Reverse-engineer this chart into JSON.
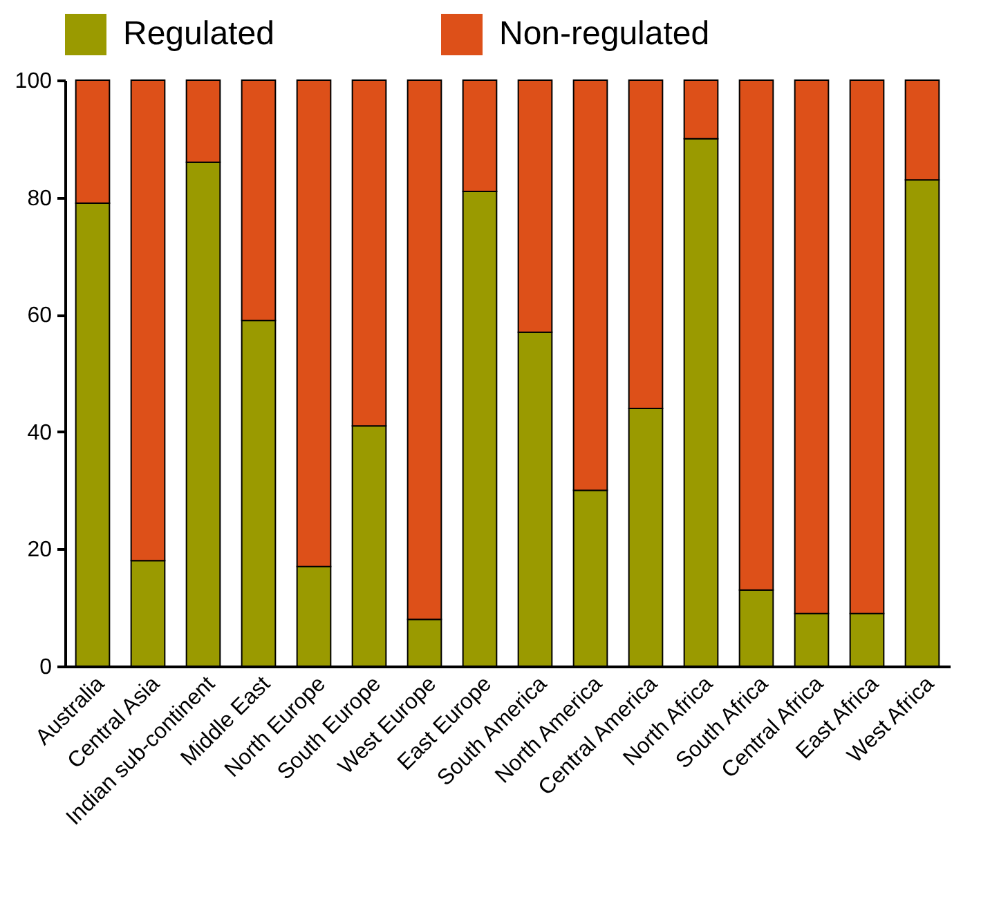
{
  "chart_data": {
    "type": "bar",
    "stacked": true,
    "categories": [
      "Australia",
      "Central Asia",
      "Indian sub-continent",
      "Middle East",
      "North Europe",
      "South Europe",
      "West Europe",
      "East Europe",
      "South America",
      "North America",
      "Central America",
      "North Africa",
      "South Africa",
      "Central Africa",
      "East Africa",
      "West Africa"
    ],
    "series": [
      {
        "name": "Regulated",
        "color": "#9a9a00",
        "values": [
          79,
          18,
          86,
          59,
          17,
          41,
          8,
          81,
          57,
          30,
          44,
          90,
          13,
          9,
          9,
          83
        ]
      },
      {
        "name": "Non-regulated",
        "color": "#dd5019",
        "values": [
          21,
          82,
          14,
          41,
          83,
          59,
          92,
          19,
          43,
          70,
          56,
          10,
          87,
          91,
          91,
          17
        ]
      }
    ],
    "ylim": [
      0,
      100
    ],
    "yticks": [
      0,
      20,
      40,
      60,
      80,
      100
    ],
    "grid": false,
    "legend": "top"
  }
}
